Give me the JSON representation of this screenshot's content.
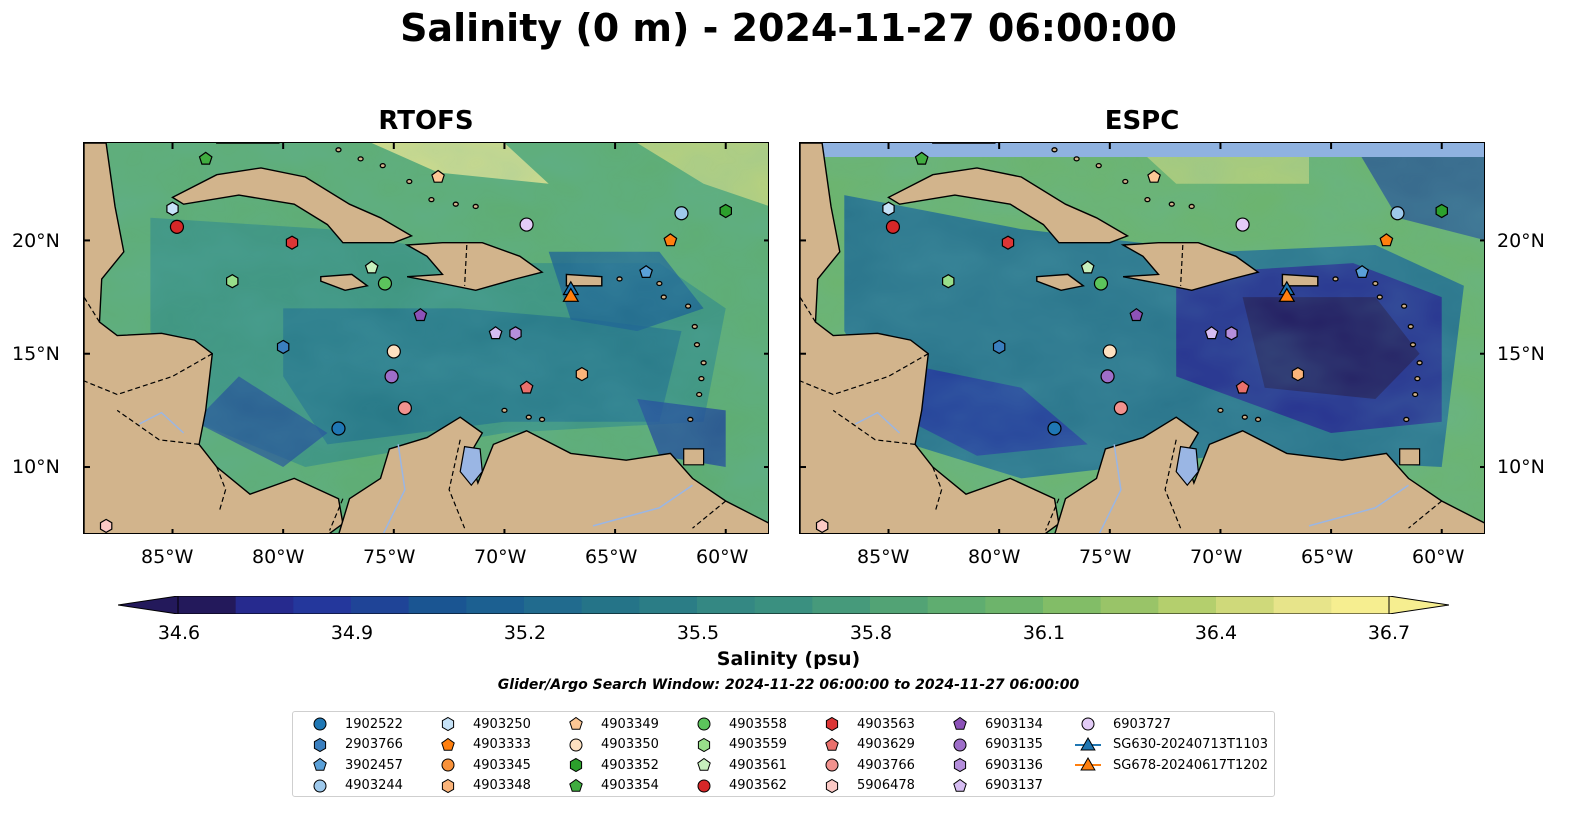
{
  "title": "Salinity (0 m) - 2024-11-27 06:00:00",
  "panels": [
    {
      "id": "rtofs",
      "title": "RTOFS"
    },
    {
      "id": "espc",
      "title": "ESPC"
    }
  ],
  "axes": {
    "x_ticks": [
      "85°W",
      "80°W",
      "75°W",
      "70°W",
      "65°W",
      "60°W"
    ],
    "y_ticks": [
      "20°N",
      "15°N",
      "10°N"
    ],
    "lon_range": [
      -89,
      -58
    ],
    "lat_range": [
      7,
      24.3
    ]
  },
  "colorbar": {
    "label": "Salinity (psu)",
    "range": [
      34.6,
      36.7
    ],
    "ticks": [
      "34.6",
      "34.9",
      "35.2",
      "35.5",
      "35.8",
      "36.1",
      "36.4",
      "36.7"
    ],
    "colors": [
      "#23195b",
      "#262a8e",
      "#24379c",
      "#1f4497",
      "#1a5592",
      "#1c6091",
      "#216b8e",
      "#257488",
      "#2b7d86",
      "#348883",
      "#3a9080",
      "#469a7b",
      "#52a375",
      "#5fad70",
      "#6db46b",
      "#82bd67",
      "#99c468",
      "#b4cf6d",
      "#cfd97a",
      "#e7e48a",
      "#f6ee90"
    ]
  },
  "search_window": "Glider/Argo Search Window: 2024-11-22 06:00:00 to 2024-11-27 06:00:00",
  "legend": [
    {
      "label": "1902522",
      "marker": "circle",
      "color": "#1f77b4"
    },
    {
      "label": "2903766",
      "marker": "hexagon",
      "color": "#3a7fbf"
    },
    {
      "label": "3902457",
      "marker": "pentagon",
      "color": "#5aa0d8"
    },
    {
      "label": "4903244",
      "marker": "circle",
      "color": "#9ec9ec"
    },
    {
      "label": "4903250",
      "marker": "hexagon",
      "color": "#c6e2f7"
    },
    {
      "label": "4903333",
      "marker": "pentagon",
      "color": "#ff7f0e"
    },
    {
      "label": "4903345",
      "marker": "circle",
      "color": "#f9923a"
    },
    {
      "label": "4903348",
      "marker": "hexagon",
      "color": "#fbb47a"
    },
    {
      "label": "4903349",
      "marker": "pentagon",
      "color": "#fcc795"
    },
    {
      "label": "4903350",
      "marker": "circle",
      "color": "#fde0c0"
    },
    {
      "label": "4903352",
      "marker": "hexagon",
      "color": "#2ca02c"
    },
    {
      "label": "4903354",
      "marker": "pentagon",
      "color": "#40ad40"
    },
    {
      "label": "4903558",
      "marker": "circle",
      "color": "#5cc45c"
    },
    {
      "label": "4903559",
      "marker": "hexagon",
      "color": "#98df8a"
    },
    {
      "label": "4903561",
      "marker": "pentagon",
      "color": "#c7f0bd"
    },
    {
      "label": "4903562",
      "marker": "circle",
      "color": "#d62728"
    },
    {
      "label": "4903563",
      "marker": "hexagon",
      "color": "#dc3535"
    },
    {
      "label": "4903629",
      "marker": "pentagon",
      "color": "#e9706c"
    },
    {
      "label": "4903766",
      "marker": "circle",
      "color": "#f2928e"
    },
    {
      "label": "5906478",
      "marker": "hexagon",
      "color": "#fbc9c5"
    },
    {
      "label": "6903134",
      "marker": "pentagon",
      "color": "#8c52b8"
    },
    {
      "label": "6903135",
      "marker": "circle",
      "color": "#9e6ec9"
    },
    {
      "label": "6903136",
      "marker": "hexagon",
      "color": "#b48edb"
    },
    {
      "label": "6903137",
      "marker": "pentagon",
      "color": "#d6bdf2"
    },
    {
      "label": "6903727",
      "marker": "circle",
      "color": "#e3ccf7"
    },
    {
      "label": "SG630-20240713T1103",
      "marker": "triangle-line",
      "color": "#1f77b4"
    },
    {
      "label": "SG678-20240617T1202",
      "marker": "triangle-line",
      "color": "#ff7f0e"
    }
  ],
  "floats": [
    {
      "id": "4903354",
      "lon": -83.5,
      "lat": 23.6,
      "marker": "pentagon",
      "color": "#40ad40"
    },
    {
      "id": "4903349",
      "lon": -73.0,
      "lat": 22.8,
      "marker": "pentagon",
      "color": "#fcc795"
    },
    {
      "id": "4903250",
      "lon": -85.0,
      "lat": 21.4,
      "marker": "hexagon",
      "color": "#c6e2f7"
    },
    {
      "id": "4903562",
      "lon": -84.8,
      "lat": 20.6,
      "marker": "circle",
      "color": "#d62728"
    },
    {
      "id": "4903563",
      "lon": -79.6,
      "lat": 19.9,
      "marker": "hexagon",
      "color": "#dc3535"
    },
    {
      "id": "6903727",
      "lon": -69.0,
      "lat": 20.7,
      "marker": "circle",
      "color": "#e3ccf7"
    },
    {
      "id": "4903244",
      "lon": -62.0,
      "lat": 21.2,
      "marker": "circle",
      "color": "#9ec9ec"
    },
    {
      "id": "4903352",
      "lon": -60.0,
      "lat": 21.3,
      "marker": "hexagon",
      "color": "#2ca02c"
    },
    {
      "id": "4903333",
      "lon": -62.5,
      "lat": 20.0,
      "marker": "pentagon",
      "color": "#ff7f0e"
    },
    {
      "id": "4903559",
      "lon": -82.3,
      "lat": 18.2,
      "marker": "hexagon",
      "color": "#98df8a"
    },
    {
      "id": "4903561",
      "lon": -76.0,
      "lat": 18.8,
      "marker": "pentagon",
      "color": "#c7f0bd"
    },
    {
      "id": "4903558",
      "lon": -75.4,
      "lat": 18.1,
      "marker": "circle",
      "color": "#5cc45c"
    },
    {
      "id": "6903134",
      "lon": -73.8,
      "lat": 16.7,
      "marker": "pentagon",
      "color": "#8c52b8"
    },
    {
      "id": "3902457",
      "lon": -63.6,
      "lat": 18.6,
      "marker": "pentagon",
      "color": "#5aa0d8"
    },
    {
      "id": "2903766",
      "lon": -80.0,
      "lat": 15.3,
      "marker": "hexagon",
      "color": "#3a7fbf"
    },
    {
      "id": "6903137",
      "lon": -70.4,
      "lat": 15.9,
      "marker": "pentagon",
      "color": "#d6bdf2"
    },
    {
      "id": "6903136",
      "lon": -69.5,
      "lat": 15.9,
      "marker": "hexagon",
      "color": "#b48edb"
    },
    {
      "id": "4903350",
      "lon": -75.0,
      "lat": 15.1,
      "marker": "circle",
      "color": "#fde0c0"
    },
    {
      "id": "6903135",
      "lon": -75.1,
      "lat": 14.0,
      "marker": "circle",
      "color": "#9e6ec9"
    },
    {
      "id": "4903348",
      "lon": -66.5,
      "lat": 14.1,
      "marker": "hexagon",
      "color": "#fbb47a"
    },
    {
      "id": "4903629",
      "lon": -69.0,
      "lat": 13.5,
      "marker": "pentagon",
      "color": "#e9706c"
    },
    {
      "id": "4903766",
      "lon": -74.5,
      "lat": 12.6,
      "marker": "circle",
      "color": "#f2928e"
    },
    {
      "id": "1902522",
      "lon": -77.5,
      "lat": 11.7,
      "marker": "circle",
      "color": "#1f77b4"
    },
    {
      "id": "5906478",
      "lon": -88.0,
      "lat": 7.4,
      "marker": "hexagon",
      "color": "#fbc9c5"
    },
    {
      "id": "SG630-20240713T1103",
      "lon": -67.0,
      "lat": 17.8,
      "marker": "triangle",
      "color": "#1f77b4"
    },
    {
      "id": "SG678-20240617T1202",
      "lon": -67.0,
      "lat": 17.5,
      "marker": "triangle",
      "color": "#ff7f0e"
    }
  ]
}
